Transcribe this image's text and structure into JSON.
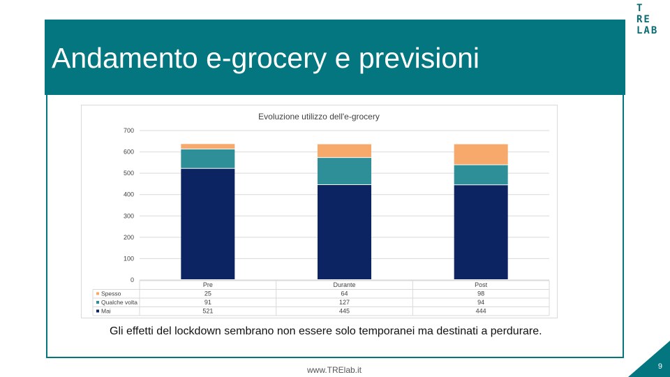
{
  "slide": {
    "title": "Andamento e-grocery e previsioni",
    "logo_lines": [
      "T",
      "RE",
      "LAB"
    ],
    "caption": "Gli effetti del lockdown sembrano non essere solo temporanei ma destinati a perdurare.",
    "footer_url": "www.TRElab.it",
    "page_number": "9",
    "colors": {
      "teal": "#037680",
      "navy": "#0c2461",
      "teal_series": "#2e8f99",
      "orange": "#f7a86b"
    }
  },
  "chart_data": {
    "type": "bar",
    "stacked": true,
    "title": "Evoluzione utilizzo dell'e-grocery",
    "categories": [
      "Pre",
      "Durante",
      "Post"
    ],
    "series": [
      {
        "name": "Mai",
        "values": [
          521,
          445,
          444
        ],
        "color": "#0c2461"
      },
      {
        "name": "Qualche volta",
        "values": [
          91,
          127,
          94
        ],
        "color": "#2e8f99"
      },
      {
        "name": "Spesso",
        "values": [
          25,
          64,
          98
        ],
        "color": "#f7a86b"
      }
    ],
    "table_row_order": [
      "Spesso",
      "Qualche volta",
      "Mai"
    ],
    "ylim": [
      0,
      700
    ],
    "yticks": [
      0,
      100,
      200,
      300,
      400,
      500,
      600,
      700
    ],
    "grid": true,
    "data_table": true
  }
}
